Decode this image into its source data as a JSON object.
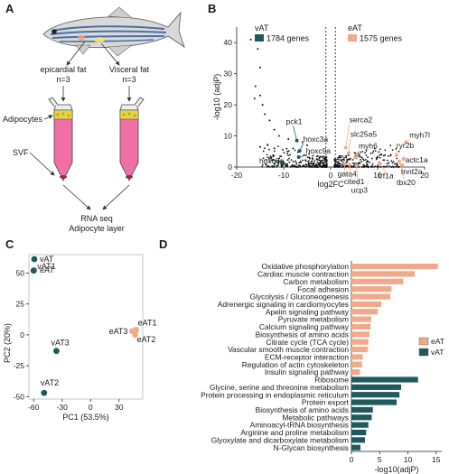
{
  "panels": {
    "a": {
      "letter": "A",
      "left_label": "epicardial fat",
      "left_n": "n=3",
      "right_label": "Visceral fat",
      "right_n": "n=3",
      "adipocytes_label": "Adipocytes",
      "svf_label": "SVF",
      "output_line1": "RNA seq",
      "output_line2": "Adipocyte layer"
    },
    "b": {
      "letter": "B"
    },
    "c": {
      "letter": "C"
    },
    "d": {
      "letter": "D"
    }
  },
  "colors": {
    "eat": "#f2a98a",
    "vat": "#1f5a5e",
    "points": "#111111",
    "tube": "#f06fa6",
    "fat": "#e6d34a"
  },
  "chart_data": [
    {
      "type": "scatter",
      "panel": "B",
      "xlabel": "log2FC",
      "ylabel": "-log10 (adjP)",
      "xlim": [
        -20,
        20
      ],
      "ylim": [
        0,
        45
      ],
      "xticks": [
        -20,
        -10,
        0,
        10,
        20
      ],
      "yticks": [
        0,
        10,
        20,
        30,
        40
      ],
      "legend": [
        {
          "group": "vAT",
          "label": "1784 genes"
        },
        {
          "group": "eAT",
          "label": "1575 genes"
        }
      ],
      "threshold_lines_x": [
        -1,
        1
      ],
      "labeled_genes": [
        {
          "gene": "pck1",
          "x": -7.2,
          "y": 8.5,
          "group": "vAT"
        },
        {
          "gene": "hoxc3a",
          "x": -6.6,
          "y": 5.2,
          "group": "vAT"
        },
        {
          "gene": "hoxc9a",
          "x": -6.8,
          "y": 3.2,
          "group": "vAT"
        },
        {
          "gene": "hoxc8a",
          "x": -10.2,
          "y": 1.2,
          "group": "vAT"
        },
        {
          "gene": "serca2",
          "x": 3.2,
          "y": 6.2,
          "group": "eAT"
        },
        {
          "gene": "slc25a5",
          "x": 3.8,
          "y": 4.5,
          "group": "eAT"
        },
        {
          "gene": "myh6",
          "x": 5.2,
          "y": 3.0,
          "group": "eAT"
        },
        {
          "gene": "myh7l",
          "x": 16.0,
          "y": 8.0,
          "group": "eAT"
        },
        {
          "gene": "ryr2b",
          "x": 14.0,
          "y": 3.8,
          "group": "eAT"
        },
        {
          "gene": "actc1a",
          "x": 15.5,
          "y": 2.6,
          "group": "eAT"
        },
        {
          "gene": "gata4",
          "x": 3.0,
          "y": 1.0,
          "group": "eAT"
        },
        {
          "gene": "cited1",
          "x": 4.0,
          "y": 0.8,
          "group": "eAT"
        },
        {
          "gene": "ucp3",
          "x": 5.5,
          "y": 0.5,
          "group": "eAT"
        },
        {
          "gene": "trf1a",
          "x": 10.5,
          "y": 1.0,
          "group": "eAT"
        },
        {
          "gene": "tnnt2a",
          "x": 14.6,
          "y": 1.8,
          "group": "eAT"
        },
        {
          "gene": "tbx20",
          "x": 15.2,
          "y": 0.6,
          "group": "eAT"
        }
      ]
    },
    {
      "type": "scatter",
      "panel": "C",
      "xlabel": "PC1 (53.5%)",
      "ylabel": "PC2 (20%)",
      "xlim": [
        -65,
        55
      ],
      "ylim": [
        -52,
        65
      ],
      "xticks": [
        -60,
        -30,
        0,
        30
      ],
      "yticks": [
        -50,
        -25,
        0,
        25,
        50
      ],
      "legend": [
        "vAT",
        "eAT"
      ],
      "points": [
        {
          "label": "vAT1",
          "x": -60,
          "y": 52,
          "group": "vAT"
        },
        {
          "label": "vAT3",
          "x": -36,
          "y": -13,
          "group": "vAT"
        },
        {
          "label": "vAT2",
          "x": -49,
          "y": -47,
          "group": "vAT"
        },
        {
          "label": "eAT1",
          "x": 48,
          "y": 4,
          "group": "eAT"
        },
        {
          "label": "eAT3",
          "x": 44,
          "y": 3,
          "group": "eAT"
        },
        {
          "label": "eAT2",
          "x": 47,
          "y": 0,
          "group": "eAT"
        }
      ]
    },
    {
      "type": "bar",
      "panel": "D",
      "orientation": "horizontal",
      "xlabel": "-log10(adjP)",
      "xlim": [
        0,
        16
      ],
      "xticks": [
        0,
        5,
        10,
        15
      ],
      "legend": [
        "eAT",
        "vAT"
      ],
      "categories": [
        "Oxidative phosphorylation",
        "Cardiac muscle contraction",
        "Carbon metabolism",
        "Focal adhesion",
        "Glycolysis / Gluconeogenesis",
        "Adrenergic signaling in cardiomyocytes",
        "Apelin signaling pathway",
        "Pyruvate metabolism",
        "Calcium signaling pathway",
        "Biosynthesis of amino acids",
        "Citrate cycle (TCA cycle)",
        "Vascular smooth muscle contraction",
        "ECM-receptor interaction",
        "Regulation of actin cytoskeleton",
        "Insulin signaling pathway",
        "Ribosome",
        "Glycine, serine and threonine metabolism",
        "Protein processing in endoplasmic reticulum",
        "Protein export",
        "Biosynthesis of amino acids",
        "Metabolic pathways",
        "Aminoacyl-tRNA biosynthesis",
        "Arginine and proline metabolism",
        "Glyoxylate and dicarboxylate metabolism",
        "N-Glycan biosynthesis"
      ],
      "values": [
        15.3,
        11.2,
        9.2,
        7.1,
        6.9,
        5.3,
        4.7,
        3.5,
        3.4,
        3.2,
        3.0,
        2.9,
        2.0,
        1.9,
        1.5,
        11.8,
        8.8,
        8.5,
        8.0,
        3.8,
        3.6,
        3.0,
        2.6,
        2.4,
        1.6
      ],
      "groups": [
        "eAT",
        "eAT",
        "eAT",
        "eAT",
        "eAT",
        "eAT",
        "eAT",
        "eAT",
        "eAT",
        "eAT",
        "eAT",
        "eAT",
        "eAT",
        "eAT",
        "eAT",
        "vAT",
        "vAT",
        "vAT",
        "vAT",
        "vAT",
        "vAT",
        "vAT",
        "vAT",
        "vAT",
        "vAT"
      ]
    }
  ]
}
